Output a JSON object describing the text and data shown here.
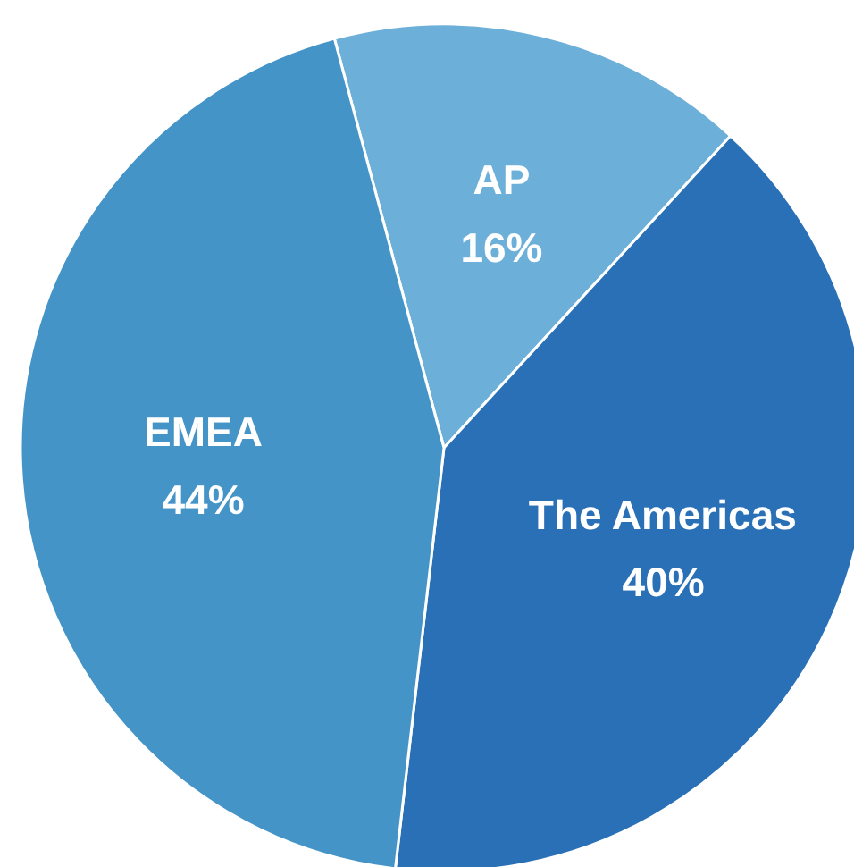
{
  "chart_data": {
    "type": "pie",
    "categories": [
      "AP",
      "The Americas",
      "EMEA"
    ],
    "values": [
      16,
      40,
      44
    ],
    "colors": [
      "#6cafd9",
      "#2a70b6",
      "#4494c8"
    ],
    "value_labels": [
      "16%",
      "40%",
      "44%"
    ]
  }
}
